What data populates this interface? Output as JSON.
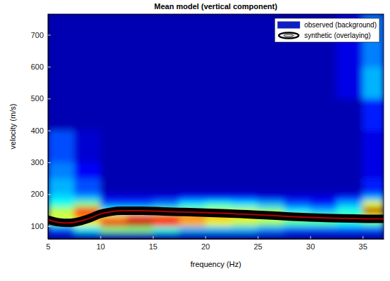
{
  "chart_data": {
    "type": "heatmap",
    "title": "Mean model (vertical component)",
    "x_label": "frequency (Hz)",
    "y_label": "velocity (m/s)",
    "xlim": [
      5,
      37
    ],
    "ylim": [
      60,
      765
    ],
    "xticks": [
      5,
      10,
      15,
      20,
      25,
      30,
      35
    ],
    "yticks": [
      100,
      200,
      300,
      400,
      500,
      600,
      700
    ],
    "grid": false,
    "legend": "upper right",
    "color_range": [
      0,
      1
    ],
    "series": [
      {
        "name": "observed (background)",
        "type": "heatmap",
        "color": "#1020c0",
        "x_edges": [
          5,
          7.5,
          10,
          12.5,
          15,
          17.5,
          20,
          22.5,
          25,
          27.5,
          30,
          32.5,
          35,
          37
        ],
        "y_edges": [
          60,
          80,
          100,
          120,
          140,
          160,
          180,
          200,
          250,
          300,
          400,
          500,
          600,
          765
        ],
        "z": [
          [
            0.05,
            0.05,
            0.05,
            0.05,
            0.05,
            0.05,
            0.05,
            0.05,
            0.05,
            0.05,
            0.05,
            0.05,
            0.05
          ],
          [
            0.2,
            0.35,
            0.5,
            0.5,
            0.4,
            0.3,
            0.3,
            0.3,
            0.25,
            0.2,
            0.2,
            0.2,
            0.2
          ],
          [
            0.45,
            0.6,
            0.9,
            0.95,
            0.85,
            0.7,
            0.6,
            0.55,
            0.5,
            0.45,
            0.45,
            0.4,
            0.45
          ],
          [
            0.6,
            0.75,
            0.7,
            0.8,
            0.8,
            0.75,
            0.7,
            0.65,
            0.6,
            0.5,
            0.45,
            0.45,
            0.6
          ],
          [
            0.55,
            0.85,
            0.4,
            0.4,
            0.45,
            0.5,
            0.55,
            0.55,
            0.5,
            0.35,
            0.3,
            0.4,
            0.95
          ],
          [
            0.4,
            0.5,
            0.2,
            0.2,
            0.25,
            0.35,
            0.4,
            0.35,
            0.3,
            0.2,
            0.15,
            0.3,
            0.6
          ],
          [
            0.35,
            0.3,
            0.1,
            0.1,
            0.1,
            0.15,
            0.15,
            0.15,
            0.1,
            0.1,
            0.1,
            0.15,
            0.3
          ],
          [
            0.3,
            0.2,
            0.05,
            0.05,
            0.05,
            0.05,
            0.05,
            0.05,
            0.05,
            0.05,
            0.05,
            0.05,
            0.15
          ],
          [
            0.25,
            0.12,
            0.05,
            0.05,
            0.05,
            0.05,
            0.05,
            0.05,
            0.05,
            0.05,
            0.05,
            0.05,
            0.1
          ],
          [
            0.2,
            0.08,
            0.05,
            0.05,
            0.05,
            0.05,
            0.05,
            0.05,
            0.05,
            0.05,
            0.05,
            0.05,
            0.1
          ],
          [
            0.05,
            0.05,
            0.05,
            0.05,
            0.05,
            0.05,
            0.05,
            0.05,
            0.05,
            0.05,
            0.05,
            0.05,
            0.15
          ],
          [
            0.05,
            0.05,
            0.05,
            0.05,
            0.05,
            0.05,
            0.05,
            0.05,
            0.05,
            0.05,
            0.05,
            0.1,
            0.3
          ],
          [
            0.05,
            0.05,
            0.05,
            0.05,
            0.05,
            0.05,
            0.05,
            0.05,
            0.05,
            0.05,
            0.05,
            0.1,
            0.25
          ]
        ]
      },
      {
        "name": "synthetic (overlaying)",
        "type": "line",
        "color": "#000000",
        "x": [
          5,
          6,
          7,
          8,
          9,
          10,
          11,
          12,
          14,
          16,
          18,
          20,
          22,
          24,
          26,
          28,
          30,
          32,
          34,
          36,
          37
        ],
        "values": [
          120,
          112,
          110,
          115,
          125,
          138,
          145,
          148,
          148,
          146,
          144,
          142,
          140,
          137,
          134,
          130,
          127,
          125,
          124,
          123,
          123
        ]
      }
    ]
  }
}
